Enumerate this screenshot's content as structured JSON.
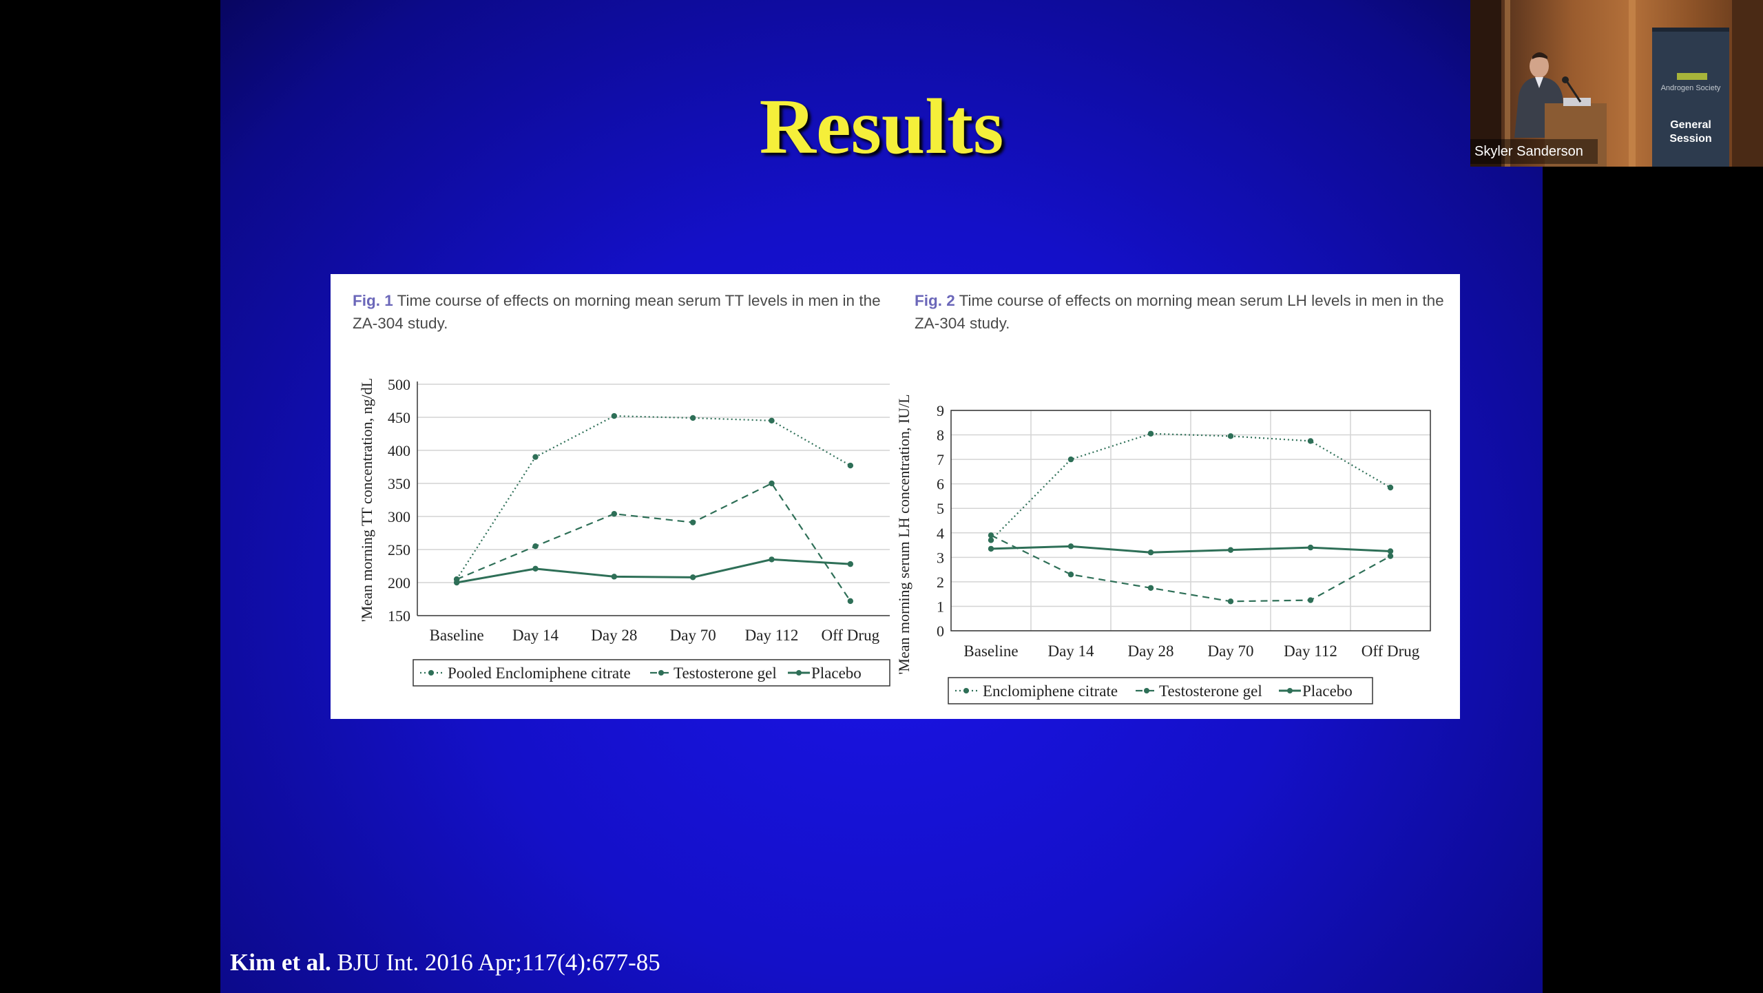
{
  "slide": {
    "title": "Results",
    "citation_authors": "Kim et al.",
    "citation_rest": " BJU Int. 2016 Apr;117(4):677-85"
  },
  "webcam": {
    "speaker_name": "Skyler Sanderson",
    "banner_org": "Androgen Society",
    "banner_line1": "General",
    "banner_line2": "Session"
  },
  "colors": {
    "series": "#2e6f57",
    "grid": "#d4d4d4",
    "caption_label": "#6b67b9",
    "title": "#f5ef3a"
  },
  "chart_data": [
    {
      "type": "line",
      "caption_label": "Fig. 1",
      "caption_text": " Time course of effects on morning mean serum TT levels in men in the ZA-304 study.",
      "ylabel": "'Mean morning TT concentration, ng/dL",
      "xlabel": "",
      "categories": [
        "Baseline",
        "Day 14",
        "Day 28",
        "Day 70",
        "Day 112",
        "Off Drug"
      ],
      "ylim": [
        150,
        500
      ],
      "yticks": [
        150,
        200,
        250,
        300,
        350,
        400,
        450,
        500
      ],
      "grid": "horizontal",
      "series": [
        {
          "name": "Pooled Enclomiphene citrate",
          "style": "dotted",
          "values": [
            205,
            390,
            452,
            449,
            445,
            377
          ]
        },
        {
          "name": "Testosterone gel",
          "style": "dashed",
          "values": [
            205,
            255,
            304,
            291,
            350,
            172
          ]
        },
        {
          "name": "Placebo",
          "style": "solid",
          "values": [
            200,
            221,
            209,
            208,
            235,
            228
          ]
        }
      ]
    },
    {
      "type": "line",
      "caption_label": "Fig. 2",
      "caption_text": " Time course of effects on morning mean serum LH levels in men in the ZA-304 study.",
      "ylabel": "'Mean morning serum LH concentration, IU/L",
      "xlabel": "",
      "categories": [
        "Baseline",
        "Day 14",
        "Day 28",
        "Day 70",
        "Day 112",
        "Off Drug"
      ],
      "ylim": [
        0,
        9
      ],
      "yticks": [
        0,
        1,
        2,
        3,
        4,
        5,
        6,
        7,
        8,
        9
      ],
      "grid": "both",
      "series": [
        {
          "name": "Enclomiphene citrate",
          "style": "dotted",
          "values": [
            3.7,
            7.0,
            8.05,
            7.95,
            7.75,
            5.85
          ]
        },
        {
          "name": "Testosterone gel",
          "style": "dashed",
          "values": [
            3.9,
            2.3,
            1.75,
            1.2,
            1.25,
            3.05
          ]
        },
        {
          "name": "Placebo",
          "style": "solid",
          "values": [
            3.35,
            3.45,
            3.2,
            3.3,
            3.4,
            3.25
          ]
        }
      ]
    }
  ]
}
